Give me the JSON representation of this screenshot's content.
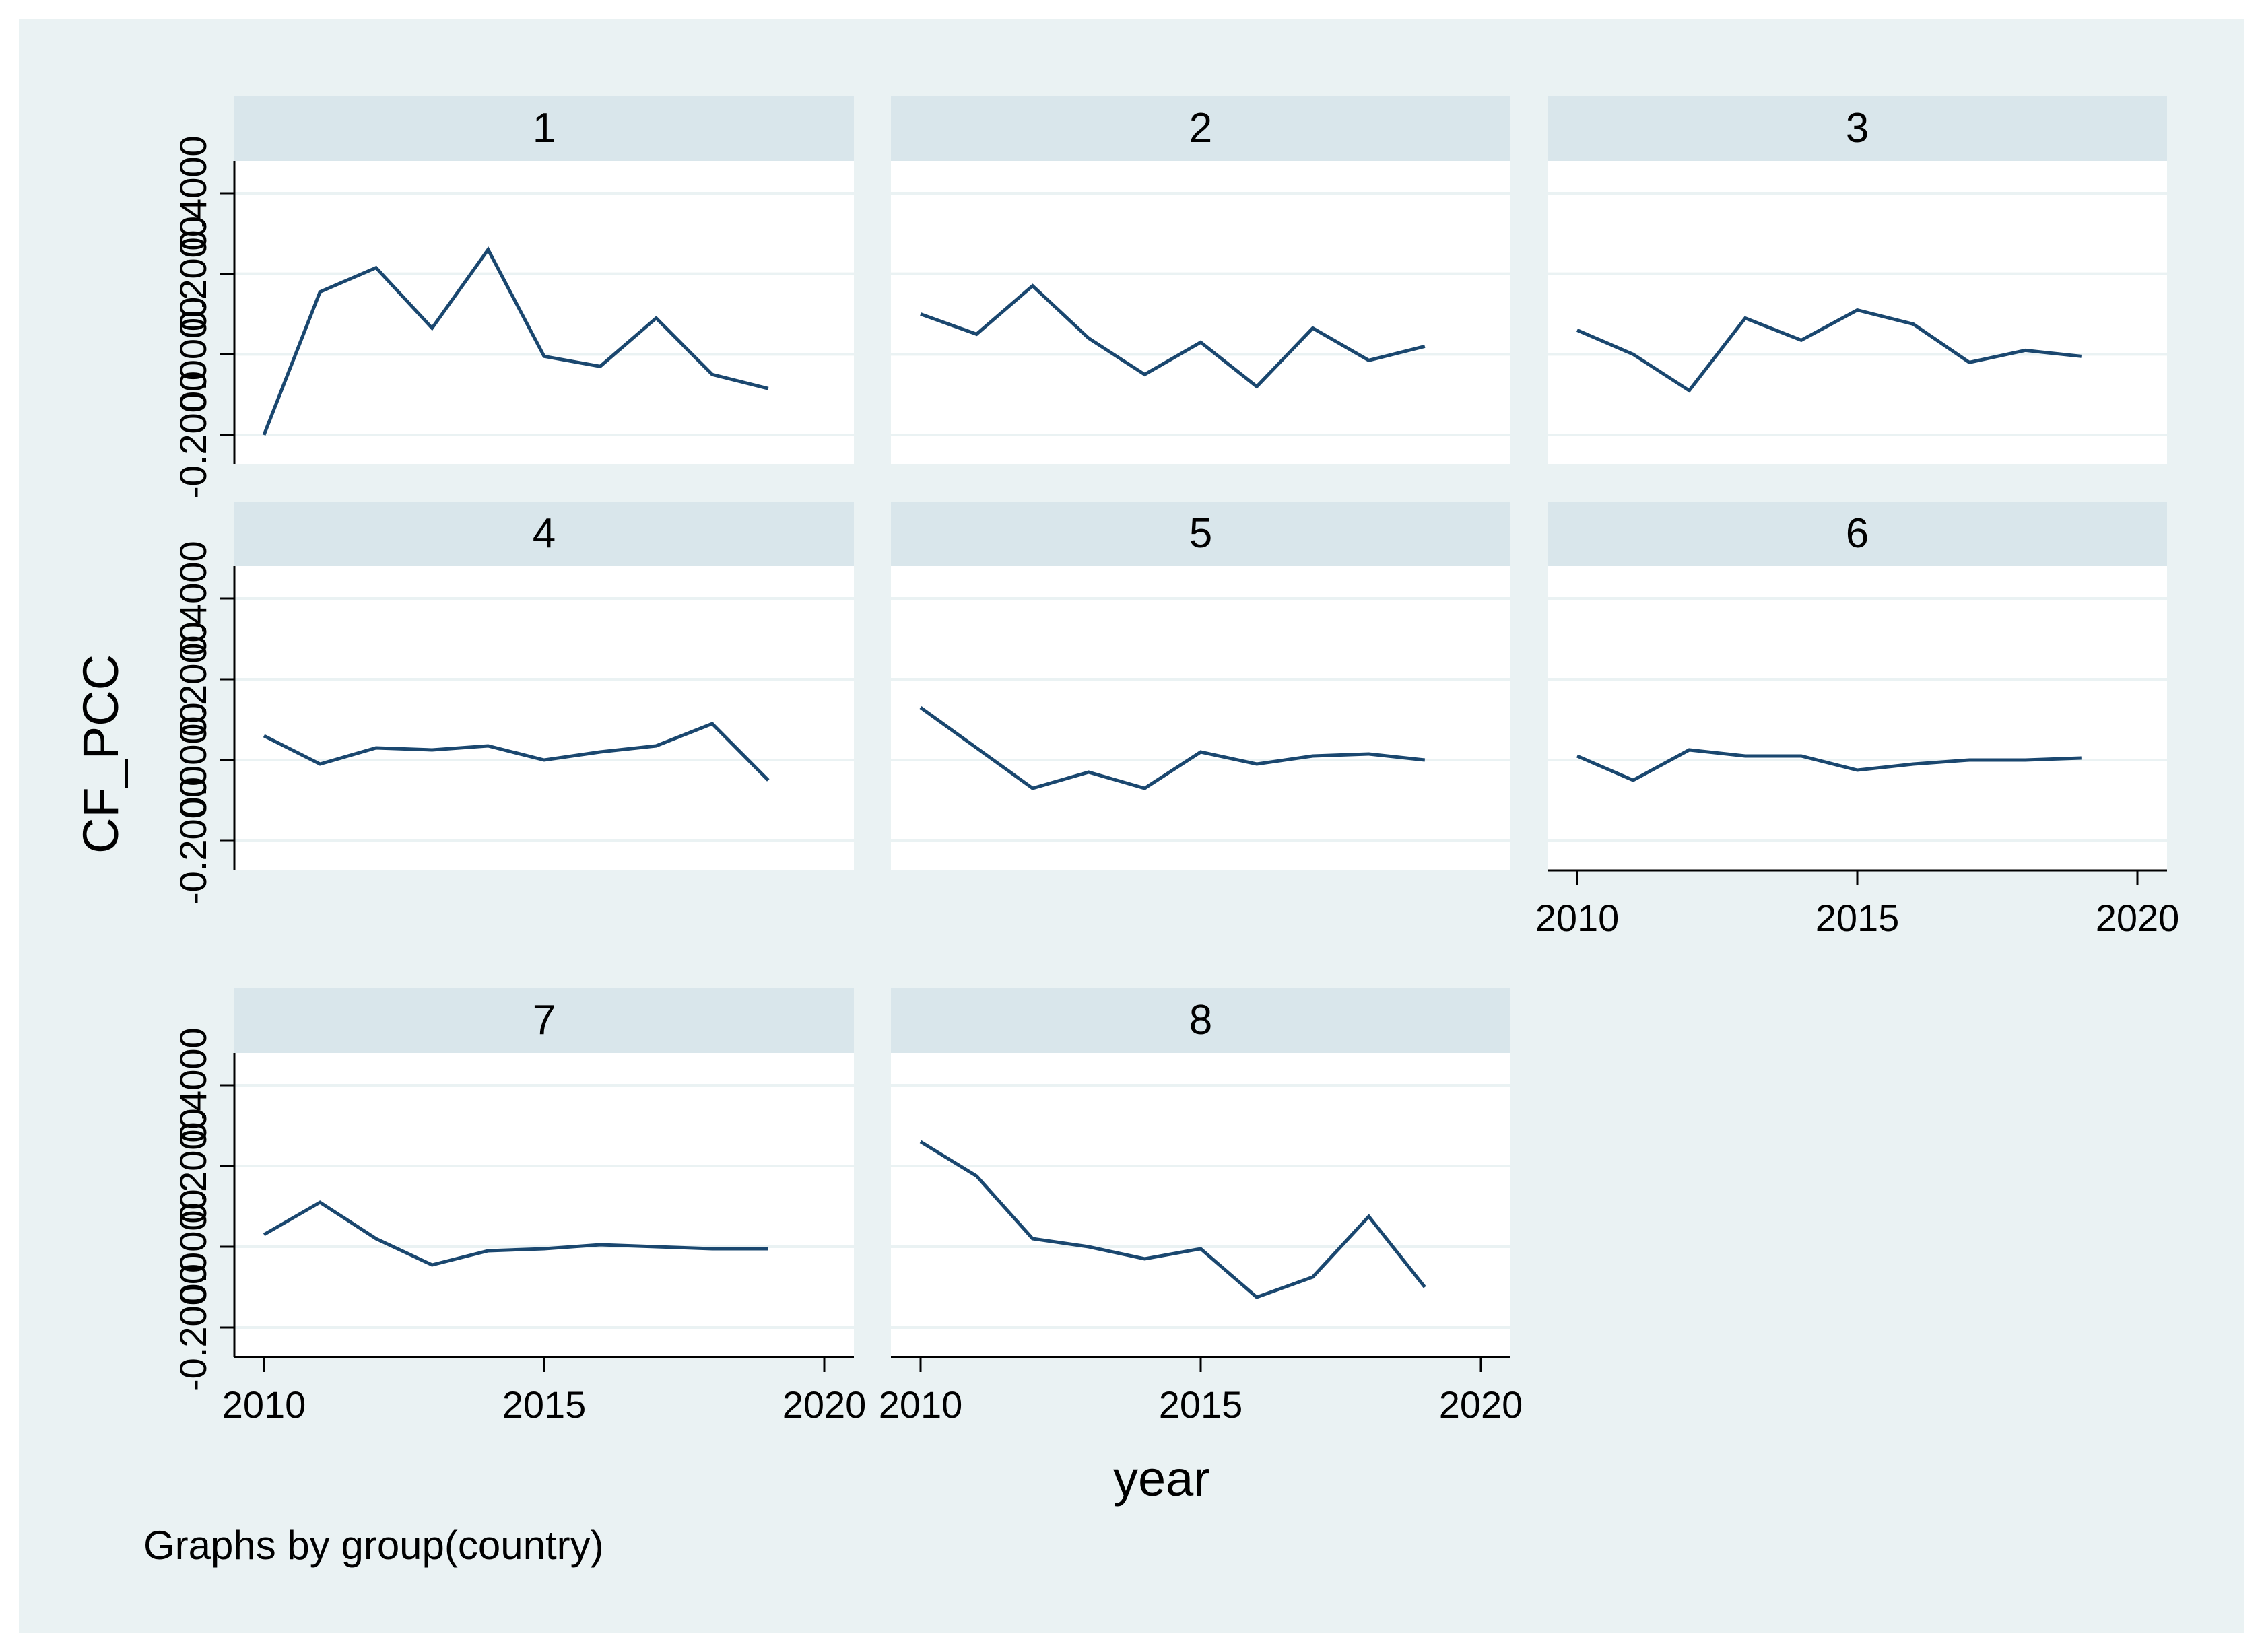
{
  "figure": {
    "ylabel": "CF_PCC",
    "xlabel": "year",
    "note": "Graphs by group(country)"
  },
  "colors": {
    "outer_background": "#eaf2f3",
    "panel_title_background": "#d9e6eb",
    "plot_background": "#ffffff",
    "gridline": "#eaf2f3",
    "line": "#1a476f"
  },
  "chart_data": {
    "type": "line",
    "x": [
      2010,
      2011,
      2012,
      2013,
      2014,
      2015,
      2016,
      2017,
      2018,
      2019
    ],
    "xlim": [
      2010,
      2020
    ],
    "xticks": [
      2010,
      2015,
      2020
    ],
    "ylim": [
      -0.2,
      0.4
    ],
    "yticks": [
      -0.2,
      0,
      0.2,
      0.4
    ],
    "ytick_labels": [
      "-0.2000",
      "0.0000",
      "0.2000",
      "0.4000"
    ],
    "grid": true,
    "panels": [
      {
        "title": "1",
        "values": [
          -0.2,
          0.155,
          0.215,
          0.065,
          0.26,
          -0.005,
          -0.03,
          0.09,
          -0.05,
          -0.085
        ]
      },
      {
        "title": "2",
        "values": [
          0.1,
          0.05,
          0.17,
          0.04,
          -0.05,
          0.03,
          -0.08,
          0.065,
          -0.015,
          0.02
        ]
      },
      {
        "title": "3",
        "values": [
          0.06,
          0.0,
          -0.09,
          0.09,
          0.035,
          0.11,
          0.075,
          -0.02,
          0.01,
          -0.005
        ]
      },
      {
        "title": "4",
        "values": [
          0.06,
          -0.01,
          0.03,
          0.025,
          0.035,
          0.0,
          0.02,
          0.035,
          0.09,
          -0.05
        ]
      },
      {
        "title": "5",
        "values": [
          0.13,
          0.03,
          -0.07,
          -0.03,
          -0.07,
          0.02,
          -0.01,
          0.01,
          0.015,
          0.0
        ]
      },
      {
        "title": "6",
        "values": [
          0.01,
          -0.05,
          0.025,
          0.01,
          0.01,
          -0.025,
          -0.01,
          0.0,
          0.0,
          0.005
        ]
      },
      {
        "title": "7",
        "values": [
          0.03,
          0.11,
          0.02,
          -0.045,
          -0.01,
          -0.005,
          0.005,
          0.0,
          -0.005,
          -0.005
        ]
      },
      {
        "title": "8",
        "values": [
          0.26,
          0.175,
          0.02,
          0.0,
          -0.03,
          -0.005,
          -0.125,
          -0.075,
          0.075,
          -0.1
        ]
      }
    ]
  }
}
